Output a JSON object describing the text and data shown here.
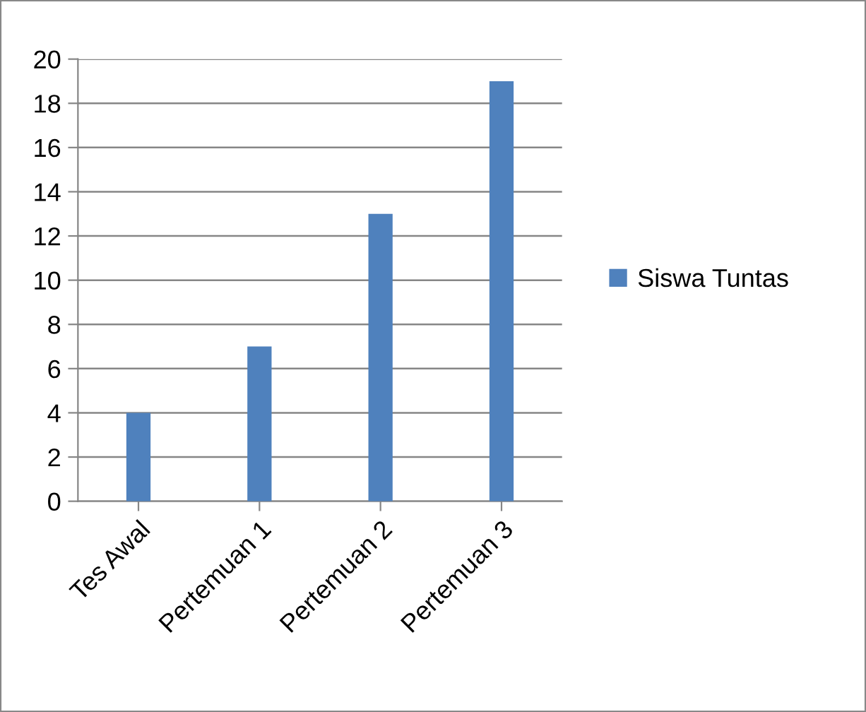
{
  "chart_data": {
    "type": "bar",
    "categories": [
      "Tes Awal",
      "Pertemuan 1",
      "Pertemuan 2",
      "Pertemuan 3"
    ],
    "series": [
      {
        "name": "Siswa Tuntas",
        "color": "#4f81bd",
        "values": [
          4,
          7,
          13,
          19
        ]
      }
    ],
    "ylim": [
      0,
      20
    ],
    "yticks": [
      0,
      2,
      4,
      6,
      8,
      10,
      12,
      14,
      16,
      18,
      20
    ],
    "grid": "y",
    "legend": "right"
  }
}
